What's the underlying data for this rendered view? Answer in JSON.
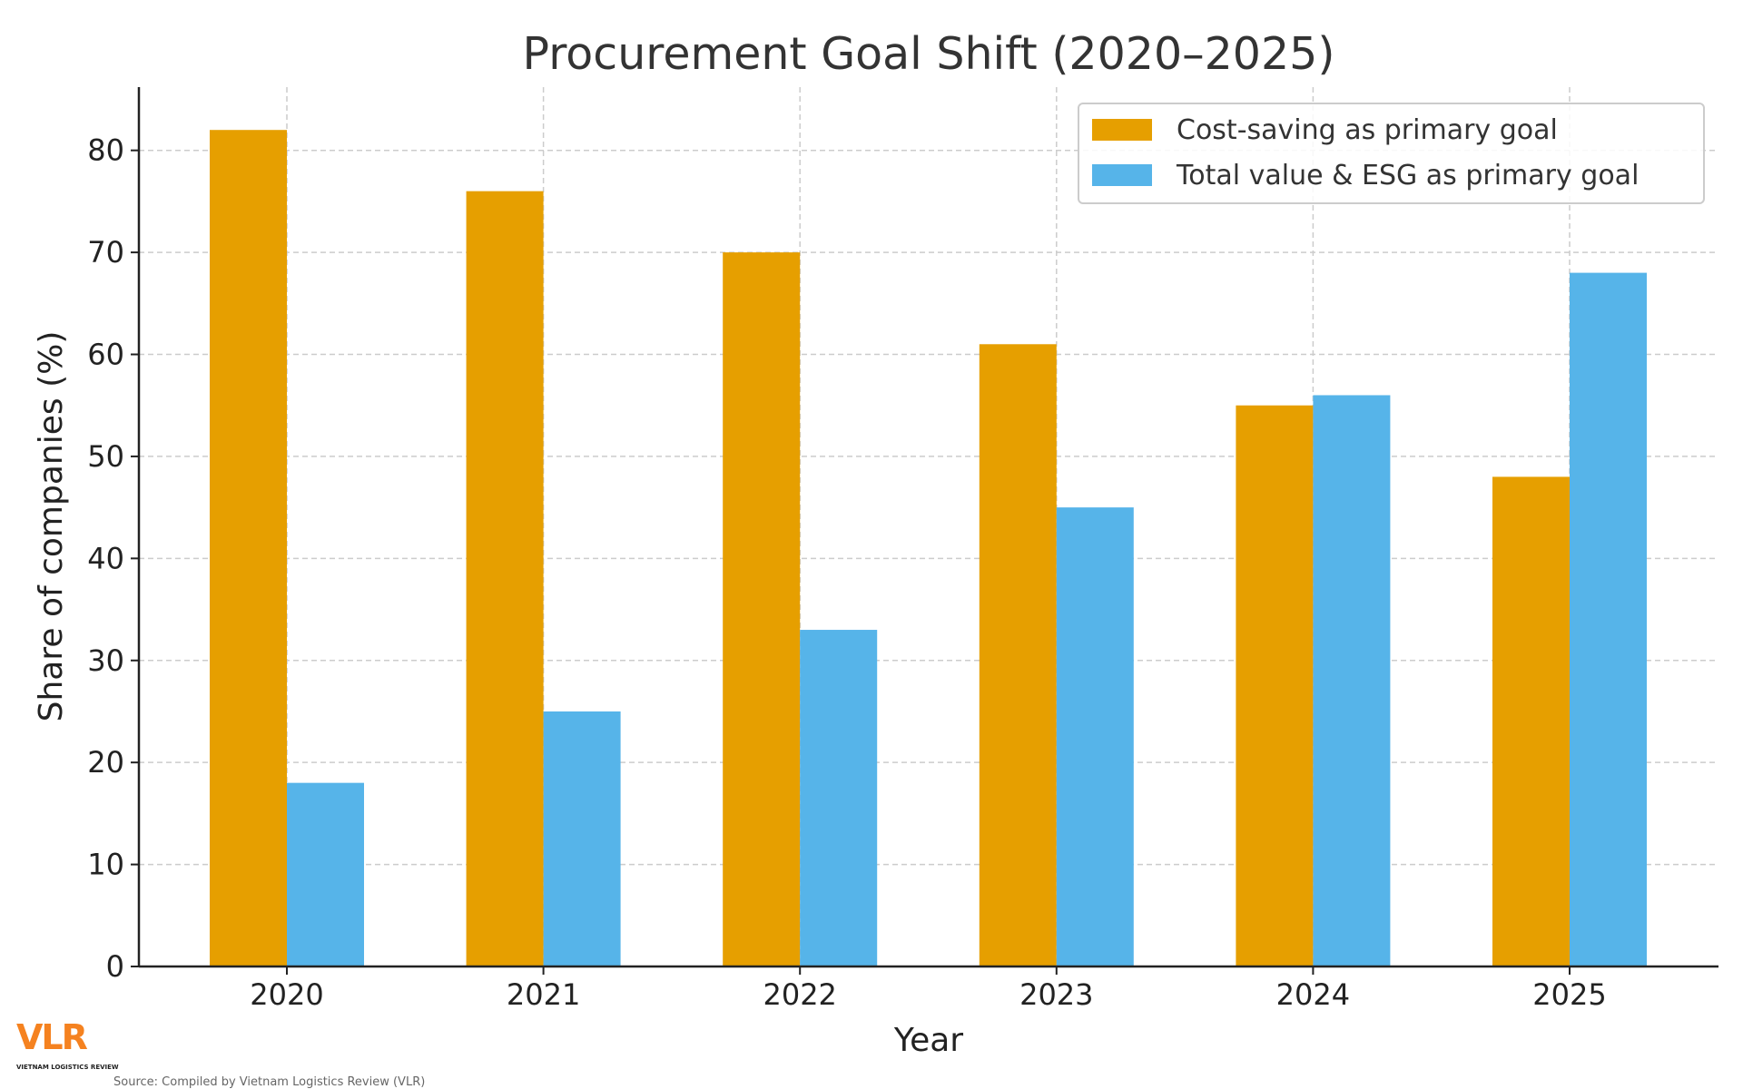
{
  "chart_data": {
    "type": "bar",
    "title": "Procurement Goal Shift (2020–2025)",
    "xlabel": "Year",
    "ylabel": "Share of companies (%)",
    "categories": [
      "2020",
      "2021",
      "2022",
      "2023",
      "2024",
      "2025"
    ],
    "series": [
      {
        "name": "Cost-saving as primary goal",
        "color": "#E69F00",
        "values": [
          82,
          76,
          70,
          61,
          55,
          48
        ]
      },
      {
        "name": "Total value & ESG as primary goal",
        "color": "#56B4E9",
        "values": [
          18,
          25,
          33,
          45,
          56,
          68
        ]
      }
    ],
    "ylim": [
      0,
      86.2
    ],
    "yticks": [
      0,
      10,
      20,
      30,
      40,
      50,
      60,
      70,
      80
    ],
    "grid": true,
    "legend_position": "top-right"
  },
  "footer": {
    "logo_text": "VLR",
    "logo_subtext": "VIETNAM LOGISTICS REVIEW",
    "logo_color": "#F58220",
    "source": "Source: Compiled by Vietnam Logistics Review (VLR)"
  }
}
